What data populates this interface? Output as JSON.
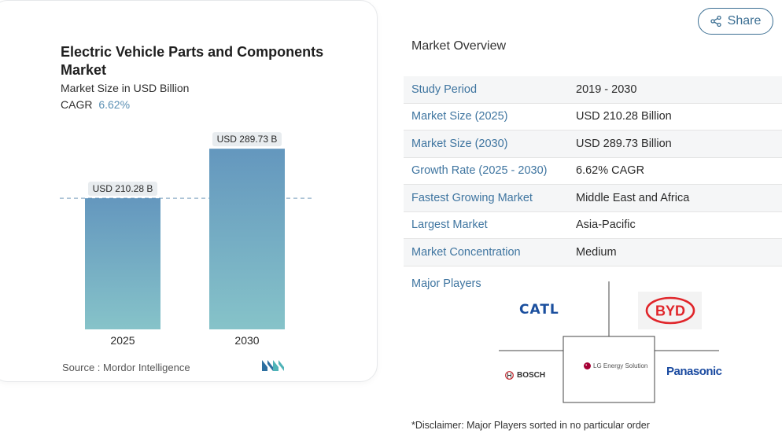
{
  "chart": {
    "title": "Electric Vehicle Parts and Components Market",
    "subtitle": "Market Size in USD Billion",
    "cagr_label": "CAGR",
    "cagr_value": "6.62%",
    "source": "Source :  Mordor Intelligence"
  },
  "chart_data": {
    "type": "bar",
    "title": "Electric Vehicle Parts and Components Market",
    "ylabel": "Market Size in USD Billion",
    "categories": [
      "2025",
      "2030"
    ],
    "values": [
      210.28,
      289.73
    ],
    "data_labels": [
      "USD 210.28 B",
      "USD 289.73 B"
    ],
    "ylim": [
      0,
      300
    ],
    "grid": false,
    "bar_color_top": "#6497be",
    "bar_color_bottom": "#86c3c9",
    "reference_line": "dashed at first bar value"
  },
  "share": {
    "label": "Share",
    "icon": "share-icon"
  },
  "overview": {
    "title": "Market Overview",
    "rows": [
      {
        "key": "Study Period",
        "value": "2019 - 2030"
      },
      {
        "key": "Market Size (2025)",
        "value": "USD 210.28 Billion"
      },
      {
        "key": "Market Size (2030)",
        "value": "USD 289.73 Billion"
      },
      {
        "key": "Growth Rate (2025 - 2030)",
        "value": "6.62% CAGR"
      },
      {
        "key": "Fastest Growing Market",
        "value": "Middle East and Africa"
      },
      {
        "key": "Largest Market",
        "value": "Asia-Pacific"
      },
      {
        "key": "Market Concentration",
        "value": "Medium"
      }
    ]
  },
  "players": {
    "label": "Major Players",
    "logos": {
      "catl": "CATL",
      "byd": "BYD",
      "bosch": "BOSCH",
      "lg": "LG Energy Solution",
      "panasonic": "Panasonic"
    }
  },
  "disclaimer": "*Disclaimer: Major Players sorted in no particular order",
  "colors": {
    "accent": "#3f75a0",
    "cagr": "#5a8fb3"
  }
}
